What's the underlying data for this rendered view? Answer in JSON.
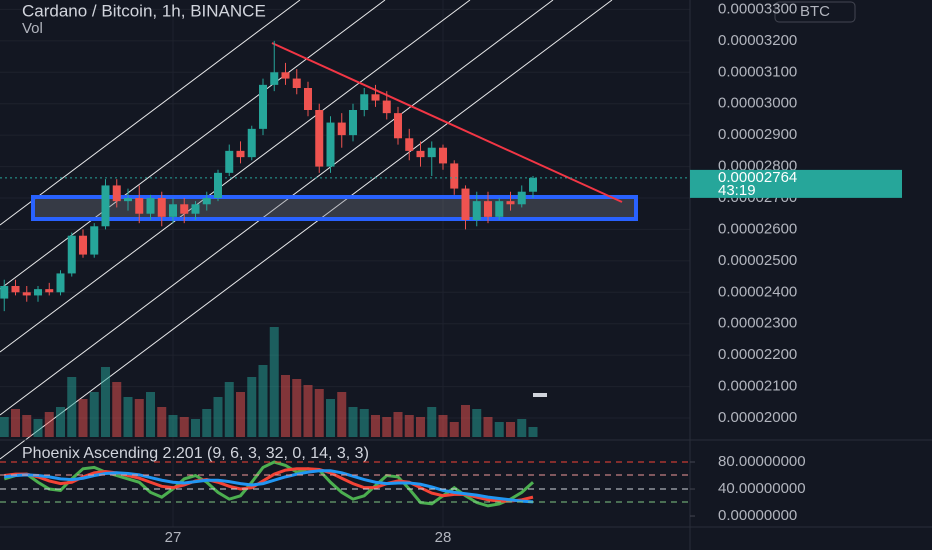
{
  "chart_data": [
    {
      "type": "candlestick",
      "title": "Cardano / Bitcoin, 1h, BINANCE",
      "currency_button": "BTC",
      "categories": [
        null,
        null,
        null,
        null,
        null,
        null,
        null,
        null,
        null,
        null,
        null,
        null,
        null,
        null,
        null,
        "27",
        null,
        null,
        null,
        null,
        null,
        null,
        null,
        null,
        null,
        null,
        null,
        null,
        null,
        null,
        null,
        null,
        null,
        null,
        null,
        null,
        null,
        null,
        null,
        "28",
        null,
        null,
        null,
        null,
        null,
        null,
        null,
        null
      ],
      "open": [
        2.38e-05,
        2.42e-05,
        2.4e-05,
        2.39e-05,
        2.41e-05,
        2.4e-05,
        2.46e-05,
        2.58e-05,
        2.52e-05,
        2.61e-05,
        2.74e-05,
        2.69e-05,
        2.7e-05,
        2.65e-05,
        2.7e-05,
        2.64e-05,
        2.68e-05,
        2.65e-05,
        2.68e-05,
        2.7e-05,
        2.78e-05,
        2.85e-05,
        2.83e-05,
        2.92e-05,
        3.06e-05,
        3.1e-05,
        3.08e-05,
        3.05e-05,
        2.98e-05,
        2.8e-05,
        2.94e-05,
        2.9e-05,
        2.98e-05,
        3.03e-05,
        3.01e-05,
        2.97e-05,
        2.89e-05,
        2.85e-05,
        2.83e-05,
        2.86e-05,
        2.81e-05,
        2.73e-05,
        2.63e-05,
        2.69e-05,
        2.64e-05,
        2.69e-05,
        2.68e-05,
        2.72e-05
      ],
      "high": [
        2.44e-05,
        2.44e-05,
        2.42e-05,
        2.42e-05,
        2.43e-05,
        2.47e-05,
        2.59e-05,
        2.6e-05,
        2.62e-05,
        2.76e-05,
        2.76e-05,
        2.73e-05,
        2.74e-05,
        2.71e-05,
        2.72e-05,
        2.7e-05,
        2.7e-05,
        2.69e-05,
        2.72e-05,
        2.79e-05,
        2.87e-05,
        2.88e-05,
        2.93e-05,
        3.08e-05,
        3.2e-05,
        3.13e-05,
        3.11e-05,
        3.07e-05,
        3e-05,
        2.96e-05,
        2.97e-05,
        3e-05,
        3.05e-05,
        3.06e-05,
        3.04e-05,
        2.99e-05,
        2.92e-05,
        2.88e-05,
        2.88e-05,
        2.87e-05,
        2.82e-05,
        2.74e-05,
        2.72e-05,
        2.72e-05,
        2.7e-05,
        2.72e-05,
        2.74e-05,
        2.77e-05
      ],
      "low": [
        2.34e-05,
        2.39e-05,
        2.37e-05,
        2.37e-05,
        2.39e-05,
        2.39e-05,
        2.45e-05,
        2.51e-05,
        2.51e-05,
        2.6e-05,
        2.67e-05,
        2.66e-05,
        2.62e-05,
        2.63e-05,
        2.61e-05,
        2.62e-05,
        2.62e-05,
        2.63e-05,
        2.66e-05,
        2.69e-05,
        2.77e-05,
        2.81e-05,
        2.82e-05,
        2.9e-05,
        3.04e-05,
        3.06e-05,
        3.03e-05,
        2.96e-05,
        2.78e-05,
        2.78e-05,
        2.86e-05,
        2.88e-05,
        2.96e-05,
        2.99e-05,
        2.95e-05,
        2.87e-05,
        2.82e-05,
        2.8e-05,
        2.77e-05,
        2.79e-05,
        2.71e-05,
        2.6e-05,
        2.61e-05,
        2.62e-05,
        2.63e-05,
        2.66e-05,
        2.67e-05,
        2.7e-05
      ],
      "close": [
        2.42e-05,
        2.4e-05,
        2.39e-05,
        2.41e-05,
        2.4e-05,
        2.46e-05,
        2.58e-05,
        2.52e-05,
        2.61e-05,
        2.74e-05,
        2.69e-05,
        2.7e-05,
        2.65e-05,
        2.7e-05,
        2.64e-05,
        2.68e-05,
        2.65e-05,
        2.68e-05,
        2.7e-05,
        2.78e-05,
        2.85e-05,
        2.83e-05,
        2.92e-05,
        3.06e-05,
        3.1e-05,
        3.08e-05,
        3.05e-05,
        2.98e-05,
        2.8e-05,
        2.94e-05,
        2.9e-05,
        2.98e-05,
        3.03e-05,
        3.01e-05,
        2.97e-05,
        2.89e-05,
        2.85e-05,
        2.83e-05,
        2.86e-05,
        2.81e-05,
        2.73e-05,
        2.63e-05,
        2.69e-05,
        2.64e-05,
        2.69e-05,
        2.68e-05,
        2.72e-05,
        2.764e-05
      ],
      "up_color": "#26a69a",
      "down_color": "#ef5350",
      "ylim": [
        1.93e-05,
        3.33e-05
      ],
      "yticks": [
        {
          "value": 2e-05,
          "label": "0.00002000"
        },
        {
          "value": 2.1e-05,
          "label": "0.00002100"
        },
        {
          "value": 2.2e-05,
          "label": "0.00002200"
        },
        {
          "value": 2.3e-05,
          "label": "0.00002300"
        },
        {
          "value": 2.4e-05,
          "label": "0.00002400"
        },
        {
          "value": 2.5e-05,
          "label": "0.00002500"
        },
        {
          "value": 2.6e-05,
          "label": "0.00002600"
        },
        {
          "value": 2.7e-05,
          "label": "0.00002700"
        },
        {
          "value": 2.8e-05,
          "label": "0.00002800"
        },
        {
          "value": 2.9e-05,
          "label": "0.00002900"
        },
        {
          "value": 3e-05,
          "label": "0.00003000"
        },
        {
          "value": 3.1e-05,
          "label": "0.00003100"
        },
        {
          "value": 3.2e-05,
          "label": "0.00003200"
        },
        {
          "value": 3.3e-05,
          "label": "0.00003300"
        }
      ],
      "last_price": {
        "value": 2.764e-05,
        "label": "0.00002764",
        "countdown": "43:19"
      },
      "grid": true
    },
    {
      "type": "bar",
      "title": "Vol",
      "values": [
        20,
        28,
        22,
        18,
        25,
        30,
        60,
        38,
        45,
        70,
        55,
        40,
        38,
        45,
        30,
        22,
        20,
        18,
        28,
        40,
        55,
        45,
        60,
        72,
        110,
        62,
        58,
        52,
        48,
        38,
        45,
        30,
        28,
        22,
        20,
        25,
        22,
        20,
        30,
        22,
        15,
        32,
        28,
        20,
        15,
        15,
        18,
        10
      ]
    },
    {
      "type": "line",
      "title": "Phoenix Ascending 2.201 (9, 6, 3, 32, 0, 14, 3, 3)",
      "series": [
        {
          "color": "#4caf50",
          "values": [
            55,
            60,
            62,
            50,
            40,
            38,
            55,
            70,
            72,
            65,
            60,
            55,
            50,
            35,
            28,
            40,
            55,
            60,
            50,
            35,
            25,
            30,
            50,
            72,
            80,
            75,
            65,
            70,
            68,
            50,
            35,
            25,
            30,
            45,
            60,
            58,
            40,
            20,
            18,
            30,
            42,
            30,
            20,
            15,
            18,
            25,
            35,
            50
          ]
        },
        {
          "color": "#f44336",
          "values": [
            60,
            62,
            62,
            58,
            52,
            48,
            50,
            58,
            64,
            66,
            64,
            60,
            56,
            50,
            44,
            42,
            46,
            52,
            54,
            50,
            44,
            40,
            42,
            52,
            62,
            68,
            70,
            70,
            69,
            64,
            56,
            48,
            42,
            42,
            48,
            52,
            50,
            42,
            34,
            30,
            32,
            32,
            28,
            24,
            22,
            22,
            24,
            28
          ]
        },
        {
          "color": "#2196f3",
          "values": [
            58,
            60,
            61,
            60,
            58,
            55,
            54,
            56,
            60,
            63,
            64,
            63,
            61,
            57,
            53,
            50,
            49,
            51,
            53,
            53,
            51,
            48,
            46,
            48,
            53,
            58,
            62,
            65,
            67,
            67,
            64,
            59,
            54,
            50,
            48,
            49,
            49,
            47,
            43,
            38,
            35,
            33,
            31,
            28,
            26,
            24,
            22,
            21
          ]
        }
      ],
      "ylim": [
        -20.7,
        112.6
      ],
      "yticks": [
        {
          "value": 0,
          "label": "0.00000000"
        },
        {
          "value": 40,
          "label": "40.00000000"
        },
        {
          "value": 80,
          "label": "80.00000000"
        }
      ]
    }
  ]
}
